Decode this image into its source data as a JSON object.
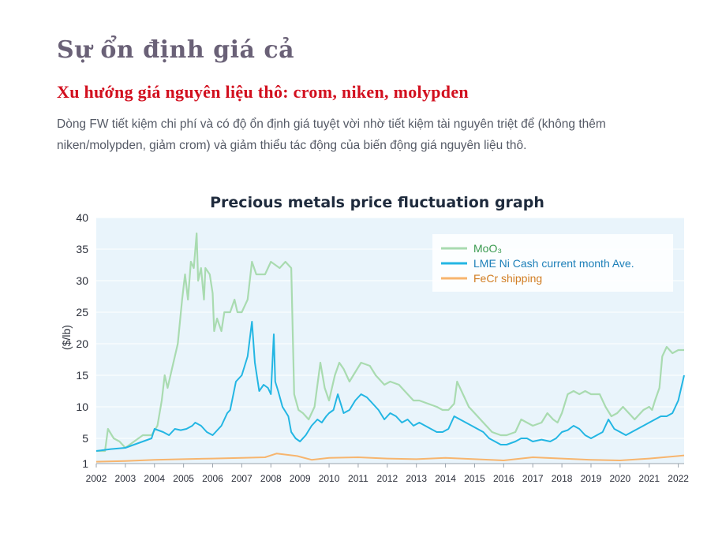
{
  "page": {
    "title": "Sự ổn định giá cả",
    "subtitle": "Xu hướng giá nguyên liệu thô: crom, niken, molypden",
    "description": "Dòng FW tiết kiệm chi phí và có độ ổn định giá tuyệt vời nhờ tiết kiệm tài nguyên triệt để (không thêm niken/molypden, giảm crom) và giảm thiểu tác động của biến động giá nguyên liệu thô."
  },
  "chart_data": {
    "type": "line",
    "title": "Precious metals price fluctuation graph",
    "ylabel": "($/lb)",
    "xlabel": "",
    "xlim": [
      2002,
      2022.2
    ],
    "ylim": [
      1,
      40
    ],
    "y_ticks": [
      1,
      5,
      10,
      15,
      20,
      25,
      30,
      35,
      40
    ],
    "x_ticks": [
      "2002",
      "2003",
      "2004",
      "2005",
      "2006",
      "2007",
      "2008",
      "2009",
      "2010",
      "2011",
      "2012",
      "2013",
      "2014",
      "2015",
      "2016",
      "2017",
      "2018",
      "2019",
      "2020",
      "2021",
      "2022"
    ],
    "legend_position": "top-right",
    "plot_background": "#e9f4fb",
    "series": [
      {
        "name": "MoO₃",
        "color": "#a9dbb0",
        "label_color": "#3a9a50",
        "points": [
          [
            2002,
            3
          ],
          [
            2002.3,
            3
          ],
          [
            2002.4,
            6.5
          ],
          [
            2002.6,
            5
          ],
          [
            2002.8,
            4.5
          ],
          [
            2003,
            3.5
          ],
          [
            2003.3,
            4.5
          ],
          [
            2003.6,
            5.5
          ],
          [
            2003.9,
            5.5
          ],
          [
            2004.1,
            7
          ],
          [
            2004.25,
            11
          ],
          [
            2004.35,
            15
          ],
          [
            2004.45,
            13
          ],
          [
            2004.6,
            16
          ],
          [
            2004.8,
            20
          ],
          [
            2004.95,
            27
          ],
          [
            2005.05,
            31
          ],
          [
            2005.15,
            27
          ],
          [
            2005.25,
            33
          ],
          [
            2005.35,
            32
          ],
          [
            2005.45,
            37.5
          ],
          [
            2005.5,
            30
          ],
          [
            2005.6,
            32
          ],
          [
            2005.7,
            27
          ],
          [
            2005.75,
            32
          ],
          [
            2005.9,
            31
          ],
          [
            2006,
            28
          ],
          [
            2006.05,
            22
          ],
          [
            2006.15,
            24
          ],
          [
            2006.3,
            22
          ],
          [
            2006.4,
            25
          ],
          [
            2006.6,
            25
          ],
          [
            2006.75,
            27
          ],
          [
            2006.85,
            25
          ],
          [
            2007,
            25
          ],
          [
            2007.2,
            27
          ],
          [
            2007.35,
            33
          ],
          [
            2007.5,
            31
          ],
          [
            2007.8,
            31
          ],
          [
            2008,
            33
          ],
          [
            2008.3,
            32
          ],
          [
            2008.5,
            33
          ],
          [
            2008.7,
            32
          ],
          [
            2008.8,
            12
          ],
          [
            2008.95,
            9.5
          ],
          [
            2009.1,
            9
          ],
          [
            2009.3,
            8
          ],
          [
            2009.5,
            10
          ],
          [
            2009.7,
            17
          ],
          [
            2009.85,
            13
          ],
          [
            2010,
            11
          ],
          [
            2010.2,
            15
          ],
          [
            2010.35,
            17
          ],
          [
            2010.5,
            16
          ],
          [
            2010.7,
            14
          ],
          [
            2010.9,
            15.5
          ],
          [
            2011.1,
            17
          ],
          [
            2011.4,
            16.5
          ],
          [
            2011.6,
            15
          ],
          [
            2011.9,
            13.5
          ],
          [
            2012.1,
            14
          ],
          [
            2012.4,
            13.5
          ],
          [
            2012.6,
            12.5
          ],
          [
            2012.9,
            11
          ],
          [
            2013.1,
            11
          ],
          [
            2013.4,
            10.5
          ],
          [
            2013.7,
            10
          ],
          [
            2013.9,
            9.5
          ],
          [
            2014.1,
            9.5
          ],
          [
            2014.3,
            10.5
          ],
          [
            2014.4,
            14
          ],
          [
            2014.6,
            12
          ],
          [
            2014.8,
            10
          ],
          [
            2015,
            9
          ],
          [
            2015.3,
            7.5
          ],
          [
            2015.6,
            6
          ],
          [
            2015.9,
            5.5
          ],
          [
            2016.1,
            5.5
          ],
          [
            2016.4,
            6
          ],
          [
            2016.6,
            8
          ],
          [
            2016.8,
            7.5
          ],
          [
            2017,
            7
          ],
          [
            2017.3,
            7.5
          ],
          [
            2017.5,
            9
          ],
          [
            2017.7,
            8
          ],
          [
            2017.85,
            7.5
          ],
          [
            2018,
            9
          ],
          [
            2018.2,
            12
          ],
          [
            2018.4,
            12.5
          ],
          [
            2018.6,
            12
          ],
          [
            2018.8,
            12.5
          ],
          [
            2019,
            12
          ],
          [
            2019.3,
            12
          ],
          [
            2019.5,
            10
          ],
          [
            2019.7,
            8.5
          ],
          [
            2019.9,
            9
          ],
          [
            2020.1,
            10
          ],
          [
            2020.3,
            9
          ],
          [
            2020.5,
            8
          ],
          [
            2020.8,
            9.5
          ],
          [
            2021,
            10
          ],
          [
            2021.1,
            9.5
          ],
          [
            2021.2,
            11
          ],
          [
            2021.35,
            13
          ],
          [
            2021.45,
            18
          ],
          [
            2021.6,
            19.5
          ],
          [
            2021.8,
            18.5
          ],
          [
            2022,
            19
          ],
          [
            2022.2,
            19
          ]
        ]
      },
      {
        "name": "LME Ni Cash current month Ave.",
        "color": "#23b6e3",
        "label_color": "#1c7fb8",
        "points": [
          [
            2002,
            3
          ],
          [
            2002.5,
            3.3
          ],
          [
            2003,
            3.5
          ],
          [
            2003.3,
            4
          ],
          [
            2003.6,
            4.5
          ],
          [
            2003.9,
            5
          ],
          [
            2004,
            6.5
          ],
          [
            2004.3,
            6
          ],
          [
            2004.5,
            5.5
          ],
          [
            2004.7,
            6.5
          ],
          [
            2004.9,
            6.3
          ],
          [
            2005.1,
            6.5
          ],
          [
            2005.3,
            7
          ],
          [
            2005.4,
            7.5
          ],
          [
            2005.6,
            7
          ],
          [
            2005.8,
            6
          ],
          [
            2006,
            5.5
          ],
          [
            2006.2,
            6.5
          ],
          [
            2006.3,
            7
          ],
          [
            2006.5,
            9
          ],
          [
            2006.6,
            9.5
          ],
          [
            2006.8,
            14
          ],
          [
            2007,
            15
          ],
          [
            2007.2,
            18
          ],
          [
            2007.35,
            23.5
          ],
          [
            2007.45,
            17
          ],
          [
            2007.6,
            12.5
          ],
          [
            2007.75,
            13.5
          ],
          [
            2007.9,
            13
          ],
          [
            2008,
            12
          ],
          [
            2008.1,
            21.5
          ],
          [
            2008.15,
            14
          ],
          [
            2008.25,
            12.5
          ],
          [
            2008.4,
            10
          ],
          [
            2008.6,
            8.5
          ],
          [
            2008.7,
            6
          ],
          [
            2008.85,
            5
          ],
          [
            2009,
            4.5
          ],
          [
            2009.2,
            5.5
          ],
          [
            2009.4,
            7
          ],
          [
            2009.6,
            8
          ],
          [
            2009.75,
            7.5
          ],
          [
            2009.9,
            8.5
          ],
          [
            2010,
            9
          ],
          [
            2010.15,
            9.5
          ],
          [
            2010.3,
            12
          ],
          [
            2010.5,
            9
          ],
          [
            2010.7,
            9.5
          ],
          [
            2010.9,
            11
          ],
          [
            2011.1,
            12
          ],
          [
            2011.3,
            11.5
          ],
          [
            2011.5,
            10.5
          ],
          [
            2011.7,
            9.5
          ],
          [
            2011.9,
            8
          ],
          [
            2012.1,
            9
          ],
          [
            2012.3,
            8.5
          ],
          [
            2012.5,
            7.5
          ],
          [
            2012.7,
            8
          ],
          [
            2012.9,
            7
          ],
          [
            2013.1,
            7.5
          ],
          [
            2013.3,
            7
          ],
          [
            2013.5,
            6.5
          ],
          [
            2013.7,
            6
          ],
          [
            2013.9,
            6
          ],
          [
            2014.1,
            6.5
          ],
          [
            2014.3,
            8.5
          ],
          [
            2014.5,
            8
          ],
          [
            2014.7,
            7.5
          ],
          [
            2014.9,
            7
          ],
          [
            2015.1,
            6.5
          ],
          [
            2015.3,
            6
          ],
          [
            2015.5,
            5
          ],
          [
            2015.7,
            4.5
          ],
          [
            2015.9,
            4
          ],
          [
            2016.1,
            4
          ],
          [
            2016.4,
            4.5
          ],
          [
            2016.6,
            5
          ],
          [
            2016.8,
            5
          ],
          [
            2017,
            4.5
          ],
          [
            2017.3,
            4.8
          ],
          [
            2017.6,
            4.5
          ],
          [
            2017.8,
            5
          ],
          [
            2018,
            6
          ],
          [
            2018.2,
            6.3
          ],
          [
            2018.4,
            7
          ],
          [
            2018.6,
            6.5
          ],
          [
            2018.8,
            5.5
          ],
          [
            2019,
            5
          ],
          [
            2019.2,
            5.5
          ],
          [
            2019.4,
            6
          ],
          [
            2019.6,
            8
          ],
          [
            2019.8,
            6.5
          ],
          [
            2020,
            6
          ],
          [
            2020.2,
            5.5
          ],
          [
            2020.4,
            6
          ],
          [
            2020.6,
            6.5
          ],
          [
            2020.8,
            7
          ],
          [
            2021,
            7.5
          ],
          [
            2021.2,
            8
          ],
          [
            2021.4,
            8.5
          ],
          [
            2021.6,
            8.5
          ],
          [
            2021.8,
            9
          ],
          [
            2022,
            11
          ],
          [
            2022.2,
            15
          ]
        ]
      },
      {
        "name": "FeCr shipping",
        "color": "#f7b56e",
        "label_color": "#d17d22",
        "points": [
          [
            2002,
            1.3
          ],
          [
            2003,
            1.4
          ],
          [
            2004,
            1.6
          ],
          [
            2005,
            1.7
          ],
          [
            2006,
            1.8
          ],
          [
            2007,
            1.9
          ],
          [
            2007.8,
            2
          ],
          [
            2008.2,
            2.6
          ],
          [
            2008.9,
            2.2
          ],
          [
            2009.4,
            1.6
          ],
          [
            2010,
            1.9
          ],
          [
            2011,
            2
          ],
          [
            2012,
            1.8
          ],
          [
            2013,
            1.7
          ],
          [
            2014,
            1.9
          ],
          [
            2015,
            1.7
          ],
          [
            2016,
            1.5
          ],
          [
            2017,
            2
          ],
          [
            2018,
            1.8
          ],
          [
            2019,
            1.6
          ],
          [
            2020,
            1.5
          ],
          [
            2021,
            1.8
          ],
          [
            2022,
            2.2
          ],
          [
            2022.2,
            2.3
          ]
        ]
      }
    ]
  }
}
